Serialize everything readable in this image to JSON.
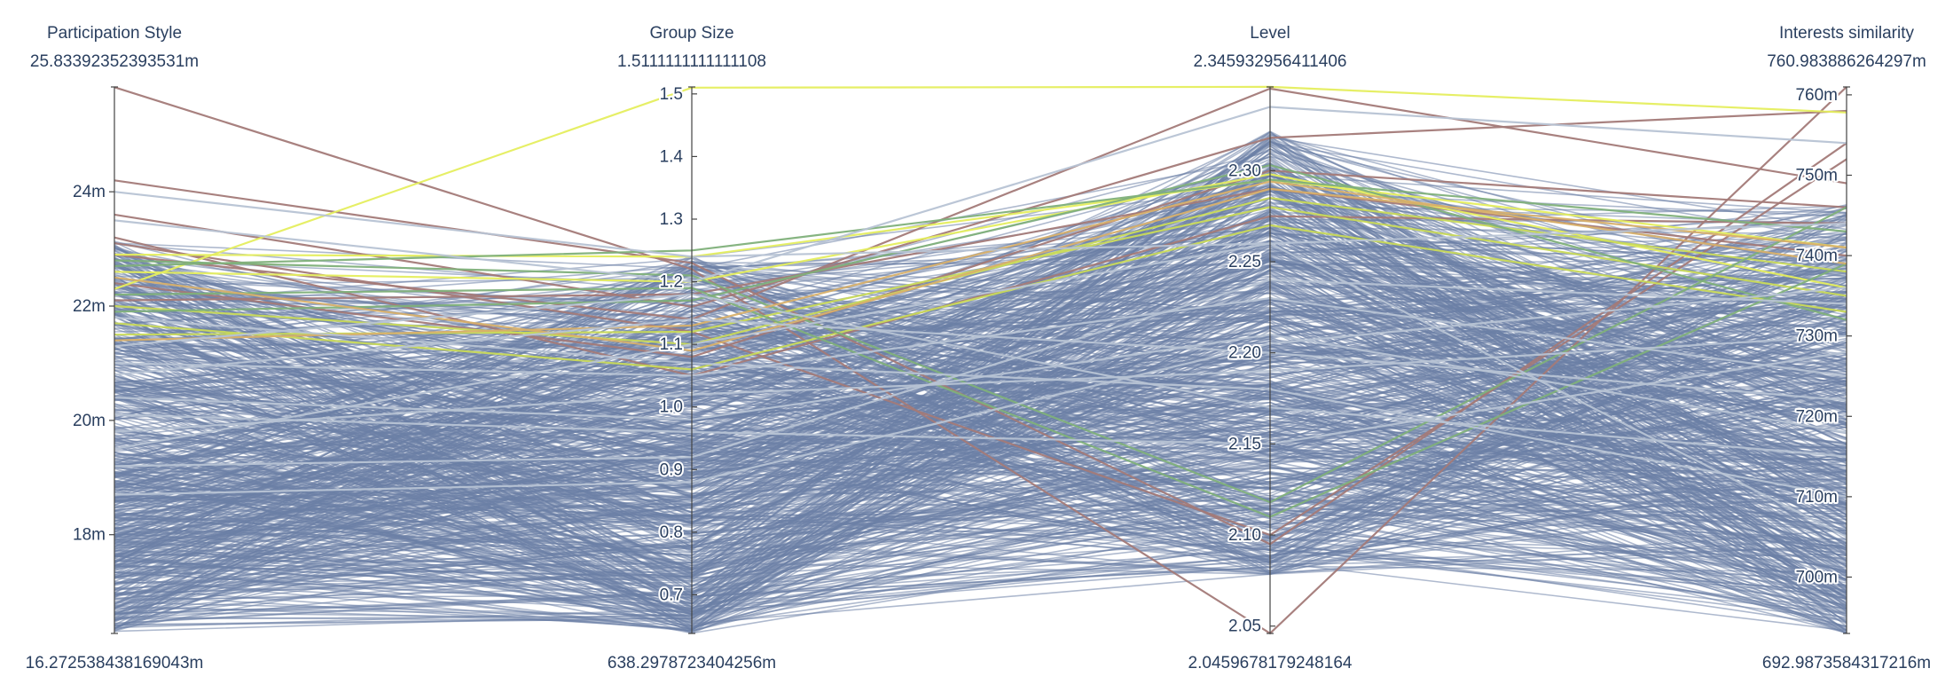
{
  "colors": {
    "background": "#ffffff",
    "axis": "#444444",
    "text": "#2a3f5f",
    "base_line": "#6b7fa6",
    "highlight_line": "#b7c3d4",
    "line_palette": [
      "#a37a78",
      "#7fb07a",
      "#c9da58",
      "#e5ee5e",
      "#d8b06a"
    ]
  },
  "chart_data": {
    "type": "parallel-coordinates",
    "grid": false,
    "dimensions": [
      {
        "key": "participation_style",
        "label": "Participation Style",
        "range_max_label": "25.83392352393531m",
        "range_min_label": "16.272538438169043m",
        "range": [
          16.272538438169043,
          25.83392352393531
        ],
        "tickvals": [
          18,
          20,
          22,
          24
        ],
        "ticktext": [
          "18m",
          "20m",
          "22m",
          "24m"
        ]
      },
      {
        "key": "group_size",
        "label": "Group Size",
        "range_max_label": "1.5111111111111108",
        "range_min_label": "638.2978723404256m",
        "range": [
          0.6382978723404256,
          1.5111111111111108
        ],
        "tickvals": [
          0.7,
          0.8,
          0.9,
          1.0,
          1.1,
          1.2,
          1.3,
          1.4,
          1.5
        ],
        "ticktext": [
          "0.7",
          "0.8",
          "0.9",
          "1.0",
          "1.1",
          "1.2",
          "1.3",
          "1.4",
          "1.5"
        ]
      },
      {
        "key": "level",
        "label": "Level",
        "range_max_label": "2.345932956411406",
        "range_min_label": "2.0459678179248164",
        "range": [
          2.0459678179248164,
          2.345932956411406
        ],
        "tickvals": [
          2.05,
          2.1,
          2.15,
          2.2,
          2.25,
          2.3
        ],
        "ticktext": [
          "2.05",
          "2.10",
          "2.15",
          "2.20",
          "2.25",
          "2.30"
        ]
      },
      {
        "key": "interests_similarity",
        "label": "Interests similarity",
        "range_max_label": "760.983886264297m",
        "range_min_label": "692.9873584317216m",
        "range": [
          0.6929873584317215,
          0.760983886264297
        ],
        "tickvals": [
          0.7,
          0.71,
          0.72,
          0.73,
          0.74,
          0.75,
          0.76
        ],
        "ticktext": [
          "700m",
          "710m",
          "720m",
          "730m",
          "740m",
          "750m",
          "760m"
        ]
      }
    ],
    "records": [
      {
        "values": [
          25.83,
          1.22,
          2.046,
          0.761
        ],
        "color": "#a37a78"
      },
      {
        "values": [
          24.2,
          1.23,
          2.095,
          0.754
        ],
        "color": "#a37a78"
      },
      {
        "values": [
          23.6,
          1.16,
          2.318,
          0.758
        ],
        "color": "#a37a78"
      },
      {
        "values": [
          23.1,
          1.12,
          2.1,
          0.752
        ],
        "color": "#a37a78"
      },
      {
        "values": [
          22.9,
          1.14,
          2.345,
          0.749
        ],
        "color": "#a37a78"
      },
      {
        "values": [
          22.4,
          1.08,
          2.3,
          0.746
        ],
        "color": "#a37a78"
      },
      {
        "values": [
          23.2,
          1.05,
          2.275,
          0.744
        ],
        "color": "#a37a78"
      },
      {
        "values": [
          22.1,
          1.18,
          2.29,
          0.74
        ],
        "color": "#a37a78"
      },
      {
        "values": [
          22.3,
          1.51,
          2.346,
          0.7578
        ],
        "color": "#e5ee5e"
      },
      {
        "values": [
          22.9,
          1.24,
          2.295,
          0.741
        ],
        "color": "#e5ee5e"
      },
      {
        "values": [
          22.6,
          1.2,
          2.298,
          0.736
        ],
        "color": "#e5ee5e"
      },
      {
        "values": [
          22.0,
          1.1,
          2.285,
          0.738
        ],
        "color": "#c9da58"
      },
      {
        "values": [
          21.7,
          1.06,
          2.27,
          0.733
        ],
        "color": "#c9da58"
      },
      {
        "values": [
          21.5,
          1.12,
          2.28,
          0.735
        ],
        "color": "#c9da58"
      },
      {
        "values": [
          22.8,
          1.21,
          2.118,
          0.746
        ],
        "color": "#7fb07a"
      },
      {
        "values": [
          22.7,
          1.25,
          2.295,
          0.743
        ],
        "color": "#7fb07a"
      },
      {
        "values": [
          22.2,
          1.19,
          2.11,
          0.739
        ],
        "color": "#7fb07a"
      },
      {
        "values": [
          21.9,
          1.17,
          2.303,
          0.732
        ],
        "color": "#7fb07a"
      },
      {
        "values": [
          22.5,
          1.09,
          2.29,
          0.741
        ],
        "color": "#d8b06a"
      },
      {
        "values": [
          21.4,
          1.13,
          2.294,
          0.739
        ],
        "color": "#d8b06a"
      },
      {
        "values": [
          24.0,
          1.24,
          2.26,
          0.744
        ],
        "color": "#b7c3d4"
      },
      {
        "values": [
          23.5,
          1.2,
          2.335,
          0.754
        ],
        "color": "#b7c3d4"
      },
      {
        "values": [
          21.0,
          1.05,
          2.23,
          0.725
        ],
        "color": "#b7c3d4"
      },
      {
        "values": [
          20.4,
          0.98,
          2.21,
          0.718
        ],
        "color": "#b7c3d4"
      },
      {
        "values": [
          19.8,
          1.02,
          2.19,
          0.73
        ],
        "color": "#b7c3d4"
      },
      {
        "values": [
          20.8,
          1.14,
          2.2,
          0.722
        ],
        "color": "#b7c3d4"
      },
      {
        "values": [
          19.2,
          0.92,
          2.24,
          0.734
        ],
        "color": "#b7c3d4"
      },
      {
        "values": [
          21.3,
          1.18,
          2.17,
          0.715
        ],
        "color": "#b7c3d4"
      },
      {
        "values": [
          20.1,
          0.96,
          2.15,
          0.728
        ],
        "color": "#b7c3d4"
      },
      {
        "values": [
          18.7,
          0.88,
          2.205,
          0.736
        ],
        "color": "#b7c3d4"
      },
      {
        "values": [
          21.8,
          1.07,
          2.18,
          0.71
        ],
        "color": "#b7c3d4"
      },
      {
        "values": [
          19.5,
          1.1,
          2.26,
          0.705
        ],
        "color": "#b7c3d4"
      }
    ]
  }
}
